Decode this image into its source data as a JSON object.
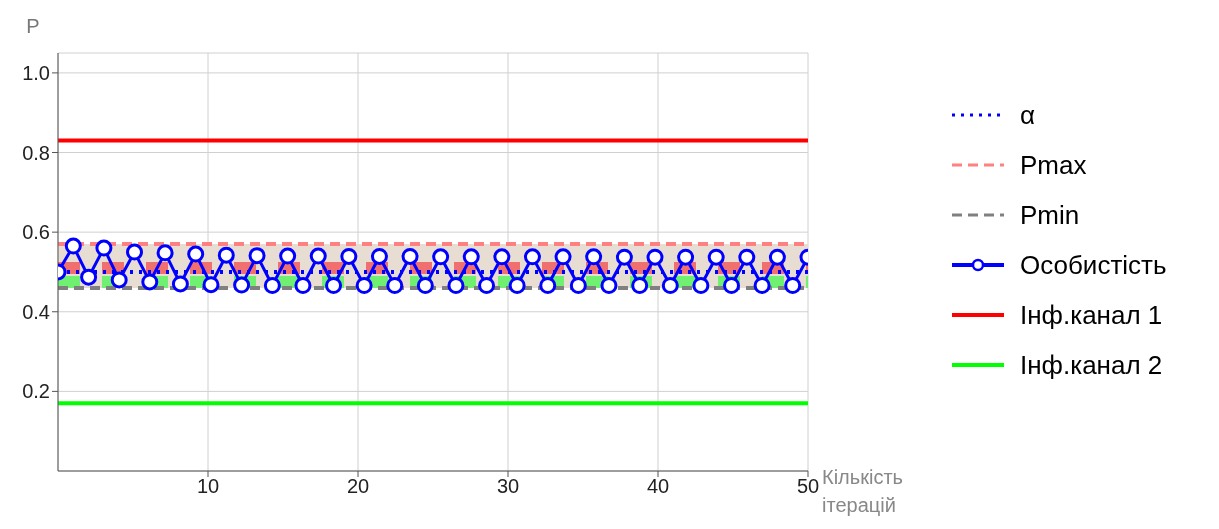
{
  "chart_data": {
    "type": "line",
    "xlabel": "Кількість ітерацій",
    "ylabel": "P",
    "xlim": [
      0,
      50
    ],
    "ylim": [
      0,
      1.05
    ],
    "xticks": [
      10,
      20,
      30,
      40,
      50
    ],
    "yticks": [
      0.2,
      0.4,
      0.6,
      0.8,
      {
        "value": 1,
        "label": "1.0"
      }
    ],
    "grid": true,
    "legend": "right",
    "bands": [
      {
        "axis": "y",
        "from": 0.46,
        "to": 0.57,
        "color": "#e8ddd3"
      }
    ],
    "ref_lines": [
      {
        "axis": "y",
        "value": 0.51,
        "color": "#f07070",
        "line_style": "dashed"
      },
      {
        "axis": "y",
        "value": 0.475,
        "color": "#70f070",
        "line_style": "dashed"
      }
    ],
    "series": [
      {
        "name": "α",
        "color": "#0000ff",
        "line_style": "dotted",
        "x": [
          0,
          50
        ],
        "values": [
          0.5,
          0.5
        ]
      },
      {
        "name": "Pmax",
        "color": "#ff8080",
        "line_style": "dashed",
        "x": [
          0,
          50
        ],
        "values": [
          0.57,
          0.57
        ]
      },
      {
        "name": "Pmin",
        "color": "#808080",
        "line_style": "dashed",
        "x": [
          0,
          50
        ],
        "values": [
          0.46,
          0.46
        ]
      },
      {
        "name": "Особистість",
        "color": "#0000ff",
        "line_style": "solid",
        "marker": "circle",
        "x": [
          0,
          1.02,
          2.04,
          3.06,
          4.08,
          5.1,
          6.12,
          7.14,
          8.16,
          9.18,
          10.2,
          11.22,
          12.24,
          13.27,
          14.29,
          15.31,
          16.33,
          17.35,
          18.37,
          19.39,
          20.41,
          21.43,
          22.45,
          23.47,
          24.49,
          25.51,
          26.53,
          27.55,
          28.57,
          29.59,
          30.61,
          31.63,
          32.65,
          33.67,
          34.69,
          35.71,
          36.73,
          37.76,
          38.78,
          39.8,
          40.82,
          41.84,
          42.86,
          43.88,
          44.9,
          45.92,
          46.94,
          47.96,
          48.98,
          50
        ],
        "values": [
          0.5,
          0.565,
          0.487,
          0.56,
          0.48,
          0.55,
          0.475,
          0.548,
          0.47,
          0.545,
          0.468,
          0.542,
          0.467,
          0.541,
          0.466,
          0.54,
          0.466,
          0.54,
          0.466,
          0.539,
          0.466,
          0.539,
          0.466,
          0.539,
          0.466,
          0.538,
          0.466,
          0.538,
          0.466,
          0.538,
          0.466,
          0.538,
          0.466,
          0.538,
          0.466,
          0.538,
          0.466,
          0.537,
          0.466,
          0.537,
          0.466,
          0.537,
          0.466,
          0.537,
          0.466,
          0.537,
          0.466,
          0.537,
          0.466,
          0.537
        ]
      },
      {
        "name": "Інф.канал 1",
        "color": "#ff0000",
        "line_style": "solid",
        "x": [
          0,
          50
        ],
        "values": [
          0.83,
          0.83
        ]
      },
      {
        "name": "Інф.канал 2",
        "color": "#00ff00",
        "line_style": "solid",
        "x": [
          0,
          50
        ],
        "values": [
          0.17,
          0.17
        ]
      }
    ]
  }
}
